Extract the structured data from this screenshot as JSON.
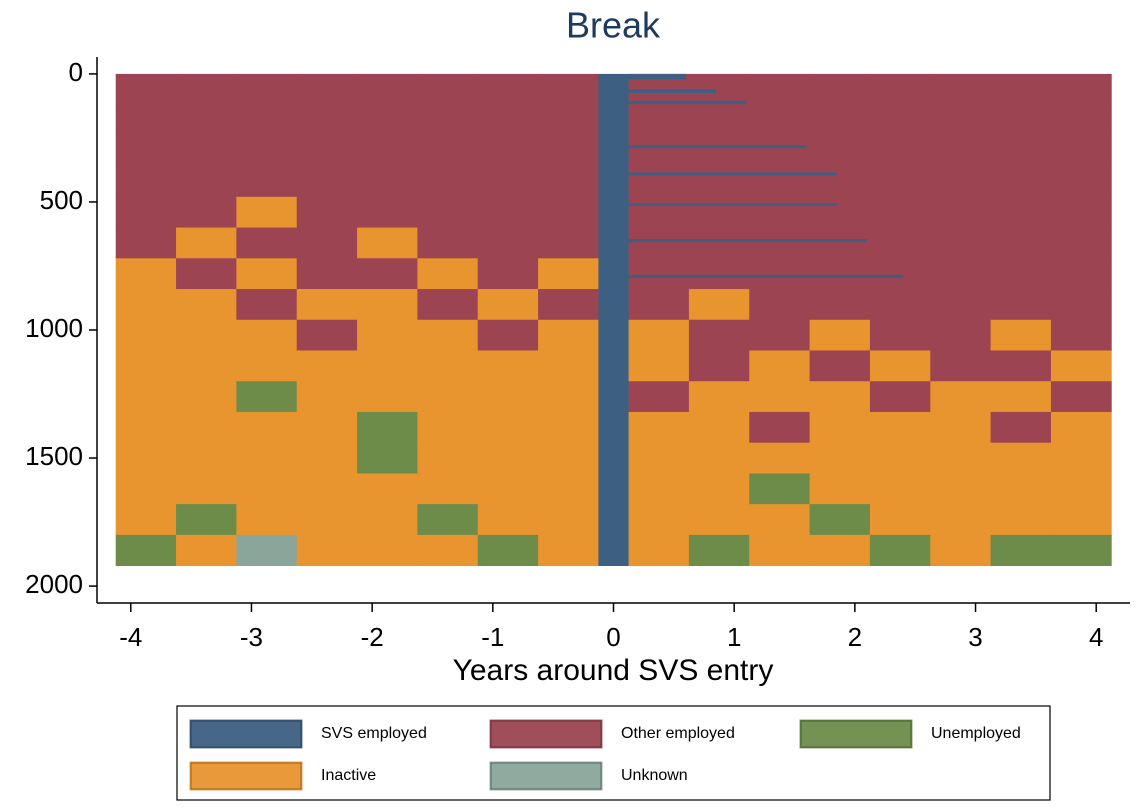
{
  "chart_data": {
    "type": "sequence_index",
    "title": "Break",
    "x_label": "Years around SVS entry",
    "xlim": [
      -4.28,
      4.28
    ],
    "xticks": [
      -4,
      -3,
      -2,
      -1,
      0,
      1,
      2,
      3,
      4
    ],
    "ylim": [
      -66,
      2066
    ],
    "y_inverted": true,
    "yticks": [
      0,
      500,
      1000,
      1500,
      2000
    ],
    "states": [
      {
        "name": "SVS employed",
        "color": "#3d5f82"
      },
      {
        "name": "Other employed",
        "color": "#9c4452"
      },
      {
        "name": "Unemployed",
        "color": "#6d8c4a"
      },
      {
        "name": "Inactive",
        "color": "#e8942f"
      },
      {
        "name": "Unknown",
        "color": "#8aa59a"
      }
    ],
    "col_edges": [
      -4.125,
      -3.625,
      -3.125,
      -2.625,
      -2.125,
      -1.625,
      -1.125,
      -0.625,
      -0.125,
      0.125,
      0.625,
      1.125,
      1.625,
      2.125,
      2.625,
      3.125,
      3.625,
      4.125
    ],
    "row_edges": [
      0,
      120,
      240,
      360,
      480,
      600,
      720,
      840,
      960,
      1080,
      1200,
      1320,
      1440,
      1560,
      1680,
      1800,
      1920
    ],
    "cells": [
      [
        1,
        1,
        1,
        1,
        1,
        1,
        1,
        1,
        0,
        1,
        1,
        1,
        1,
        1,
        1,
        1,
        1
      ],
      [
        1,
        1,
        1,
        1,
        1,
        1,
        1,
        1,
        0,
        1,
        1,
        1,
        1,
        1,
        1,
        1,
        1
      ],
      [
        1,
        1,
        1,
        1,
        1,
        1,
        1,
        1,
        0,
        1,
        1,
        1,
        1,
        1,
        1,
        1,
        1
      ],
      [
        1,
        1,
        1,
        1,
        1,
        1,
        1,
        1,
        0,
        1,
        1,
        1,
        1,
        1,
        1,
        1,
        1
      ],
      [
        1,
        1,
        3,
        1,
        1,
        1,
        1,
        1,
        0,
        1,
        1,
        1,
        1,
        1,
        1,
        1,
        1
      ],
      [
        1,
        3,
        1,
        1,
        3,
        1,
        1,
        1,
        0,
        1,
        1,
        1,
        1,
        1,
        1,
        1,
        1
      ],
      [
        3,
        1,
        3,
        1,
        1,
        3,
        1,
        3,
        0,
        1,
        1,
        1,
        1,
        1,
        1,
        1,
        1
      ],
      [
        3,
        3,
        1,
        3,
        3,
        1,
        3,
        1,
        0,
        1,
        3,
        1,
        1,
        1,
        1,
        1,
        1
      ],
      [
        3,
        3,
        3,
        1,
        3,
        3,
        1,
        3,
        0,
        3,
        1,
        1,
        3,
        1,
        1,
        3,
        1
      ],
      [
        3,
        3,
        3,
        3,
        3,
        3,
        3,
        3,
        0,
        3,
        1,
        3,
        1,
        3,
        1,
        1,
        3
      ],
      [
        3,
        3,
        2,
        3,
        3,
        3,
        3,
        3,
        0,
        1,
        3,
        3,
        3,
        1,
        3,
        3,
        1
      ],
      [
        3,
        3,
        3,
        3,
        2,
        3,
        3,
        3,
        0,
        3,
        3,
        1,
        3,
        3,
        3,
        1,
        3
      ],
      [
        3,
        3,
        3,
        3,
        2,
        3,
        3,
        3,
        0,
        3,
        3,
        3,
        3,
        3,
        3,
        3,
        3
      ],
      [
        3,
        3,
        3,
        3,
        3,
        3,
        3,
        3,
        0,
        3,
        3,
        2,
        3,
        3,
        3,
        3,
        3
      ],
      [
        3,
        2,
        3,
        3,
        3,
        2,
        3,
        3,
        0,
        3,
        3,
        3,
        2,
        3,
        3,
        3,
        3
      ],
      [
        2,
        3,
        4,
        3,
        3,
        3,
        2,
        3,
        0,
        3,
        2,
        3,
        3,
        2,
        3,
        2,
        2
      ]
    ],
    "svs_spells": [
      {
        "y0": 0,
        "y1": 20,
        "x1": 0.6
      },
      {
        "y0": 60,
        "y1": 75,
        "x1": 0.85
      },
      {
        "y0": 105,
        "y1": 118,
        "x1": 1.1
      },
      {
        "y0": 278,
        "y1": 290,
        "x1": 1.6
      },
      {
        "y0": 385,
        "y1": 397,
        "x1": 1.85
      },
      {
        "y0": 505,
        "y1": 515,
        "x1": 1.85
      },
      {
        "y0": 645,
        "y1": 657,
        "x1": 2.1
      },
      {
        "y0": 785,
        "y1": 797,
        "x1": 2.4
      }
    ]
  }
}
